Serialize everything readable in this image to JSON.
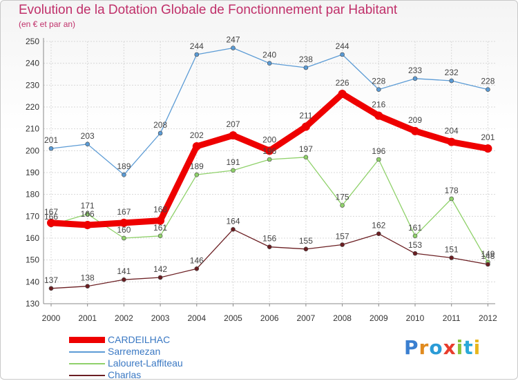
{
  "title": "Evolution de la Dotation Globale de Fonctionnement par Habitant",
  "subtitle": "(en € et par an)",
  "logo": {
    "text": "Proxiti",
    "colors": [
      "#3a7fd0",
      "#e08a1e",
      "#2a9bd6",
      "#e83c2c",
      "#8ac23a",
      "#2aa8d8",
      "#e8b61e"
    ]
  },
  "chart_data": {
    "type": "line",
    "x": [
      "2000",
      "2001",
      "2002",
      "2003",
      "2004",
      "2005",
      "2006",
      "2007",
      "2008",
      "2009",
      "2010",
      "2011",
      "2012"
    ],
    "ylim": [
      130,
      250
    ],
    "yticks": [
      130,
      140,
      150,
      160,
      170,
      180,
      190,
      200,
      210,
      220,
      230,
      240,
      250
    ],
    "grid": true,
    "legend": "bottom-left",
    "series": [
      {
        "name": "Sarremezan",
        "color": "#5b9bd5",
        "values": [
          201,
          203,
          189,
          208,
          244,
          247,
          240,
          238,
          244,
          228,
          233,
          232,
          228
        ]
      },
      {
        "name": "Lalouret-Laffiteau",
        "color": "#8fd16a",
        "values": [
          166,
          171,
          160,
          161,
          189,
          191,
          196,
          197,
          175,
          196,
          161,
          178,
          149
        ]
      },
      {
        "name": "Charlas",
        "color": "#6b1e22",
        "values": [
          137,
          138,
          141,
          142,
          146,
          164,
          156,
          155,
          157,
          162,
          153,
          151,
          148
        ]
      },
      {
        "name": "CARDEILHAC",
        "color": "#ee0000",
        "values": [
          167,
          166,
          167,
          168,
          202,
          207,
          200,
          211,
          226,
          216,
          209,
          204,
          201
        ]
      }
    ],
    "legend_order": [
      "CARDEILHAC",
      "Sarremezan",
      "Lalouret-Laffiteau",
      "Charlas"
    ]
  }
}
